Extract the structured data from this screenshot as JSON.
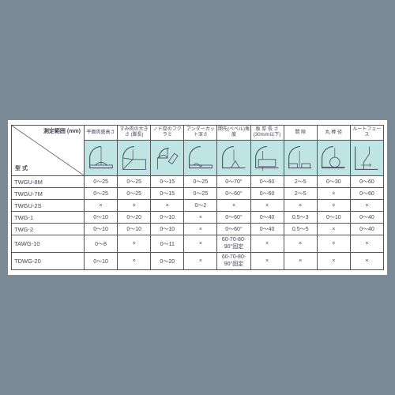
{
  "left_header": {
    "range_label": "測定範囲\n(mm)",
    "model_label": "型 式"
  },
  "columns": [
    {
      "label": "平面肉盛高さ"
    },
    {
      "label": "すみ肉の大きさ\n(脚長)"
    },
    {
      "label": "ノド厚のフクラミ"
    },
    {
      "label": "アンダーカット深さ"
    },
    {
      "label": "開先(ベベル)角度"
    },
    {
      "label": "板 厚 長 さ\n(30m/m以下)"
    },
    {
      "label": "間  隙"
    },
    {
      "label": "丸 棒 径"
    },
    {
      "label": "ルートフェース"
    }
  ],
  "rows": [
    {
      "model": "TWGU-8M",
      "v": [
        "0～25",
        "0～25",
        "0～15",
        "0～25",
        "0～70°",
        "0～60",
        "2～5",
        "0～30",
        "0～60"
      ]
    },
    {
      "model": "TWGU-7M",
      "v": [
        "0～25",
        "0～25",
        "0～15",
        "0～25",
        "0～60°",
        "0～60",
        "2～5",
        "×",
        "0～60"
      ]
    },
    {
      "model": "TWGU-2S",
      "v": [
        "×",
        "×",
        "×",
        "0～2",
        "×",
        "×",
        "×",
        "×",
        "×"
      ]
    },
    {
      "model": "TWG-1",
      "v": [
        "0～10",
        "0～20",
        "0～10",
        "×",
        "0～60°",
        "0～40",
        "0.5～3",
        "0～10",
        "0～40"
      ]
    },
    {
      "model": "TWG-2",
      "v": [
        "0～10",
        "0～10",
        "0～10",
        "×",
        "0～60°",
        "0～40",
        "0.5～5",
        "×",
        "0～40"
      ]
    },
    {
      "model": "TAWG-10",
      "v": [
        "0～8",
        "×",
        "0～11",
        "×",
        "60-70-80-90°固定",
        "×",
        "×",
        "×",
        "×"
      ]
    },
    {
      "model": "TDWG-20",
      "v": [
        "0～10",
        "×",
        "0～20",
        "×",
        "60-70-80-90°固定",
        "×",
        "×",
        "×",
        "×"
      ]
    }
  ]
}
